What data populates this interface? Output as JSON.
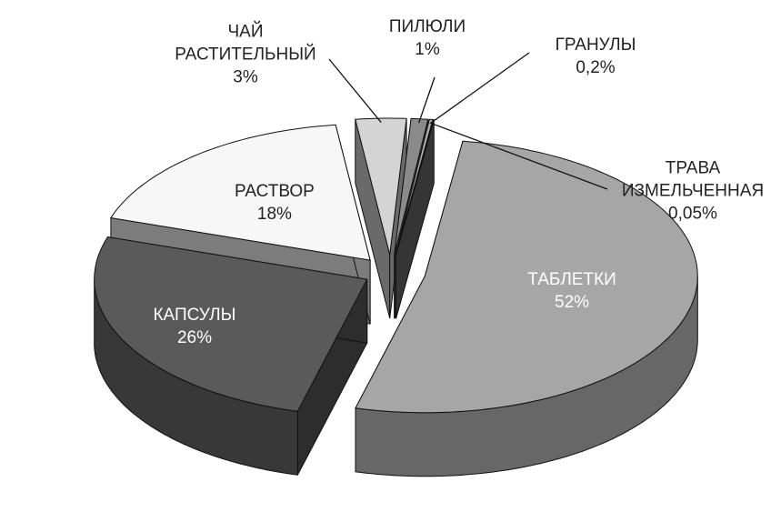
{
  "chart_data": {
    "type": "pie3d",
    "categories": [
      "ТАБЛЕТКИ",
      "КАПСУЛЫ",
      "РАСТВОР",
      "ЧАЙ\nРАСТИТЕЛЬНЫЙ",
      "ПИЛЮЛИ",
      "ГРАНУЛЫ",
      "ТРАВА\nИЗМЕЛЬЧЕННАЯ"
    ],
    "values": [
      52,
      26,
      18,
      3,
      1,
      0.2,
      0.05
    ],
    "value_labels": [
      "52%",
      "26%",
      "18%",
      "3%",
      "1%",
      "0,2%",
      "0,05%"
    ],
    "colors": [
      "#a6a6a6",
      "#5a5a5a",
      "#f7f7f7",
      "#d4d4d4",
      "#8a8a8a",
      "#b0b0b0",
      "#6a6a6a"
    ]
  }
}
